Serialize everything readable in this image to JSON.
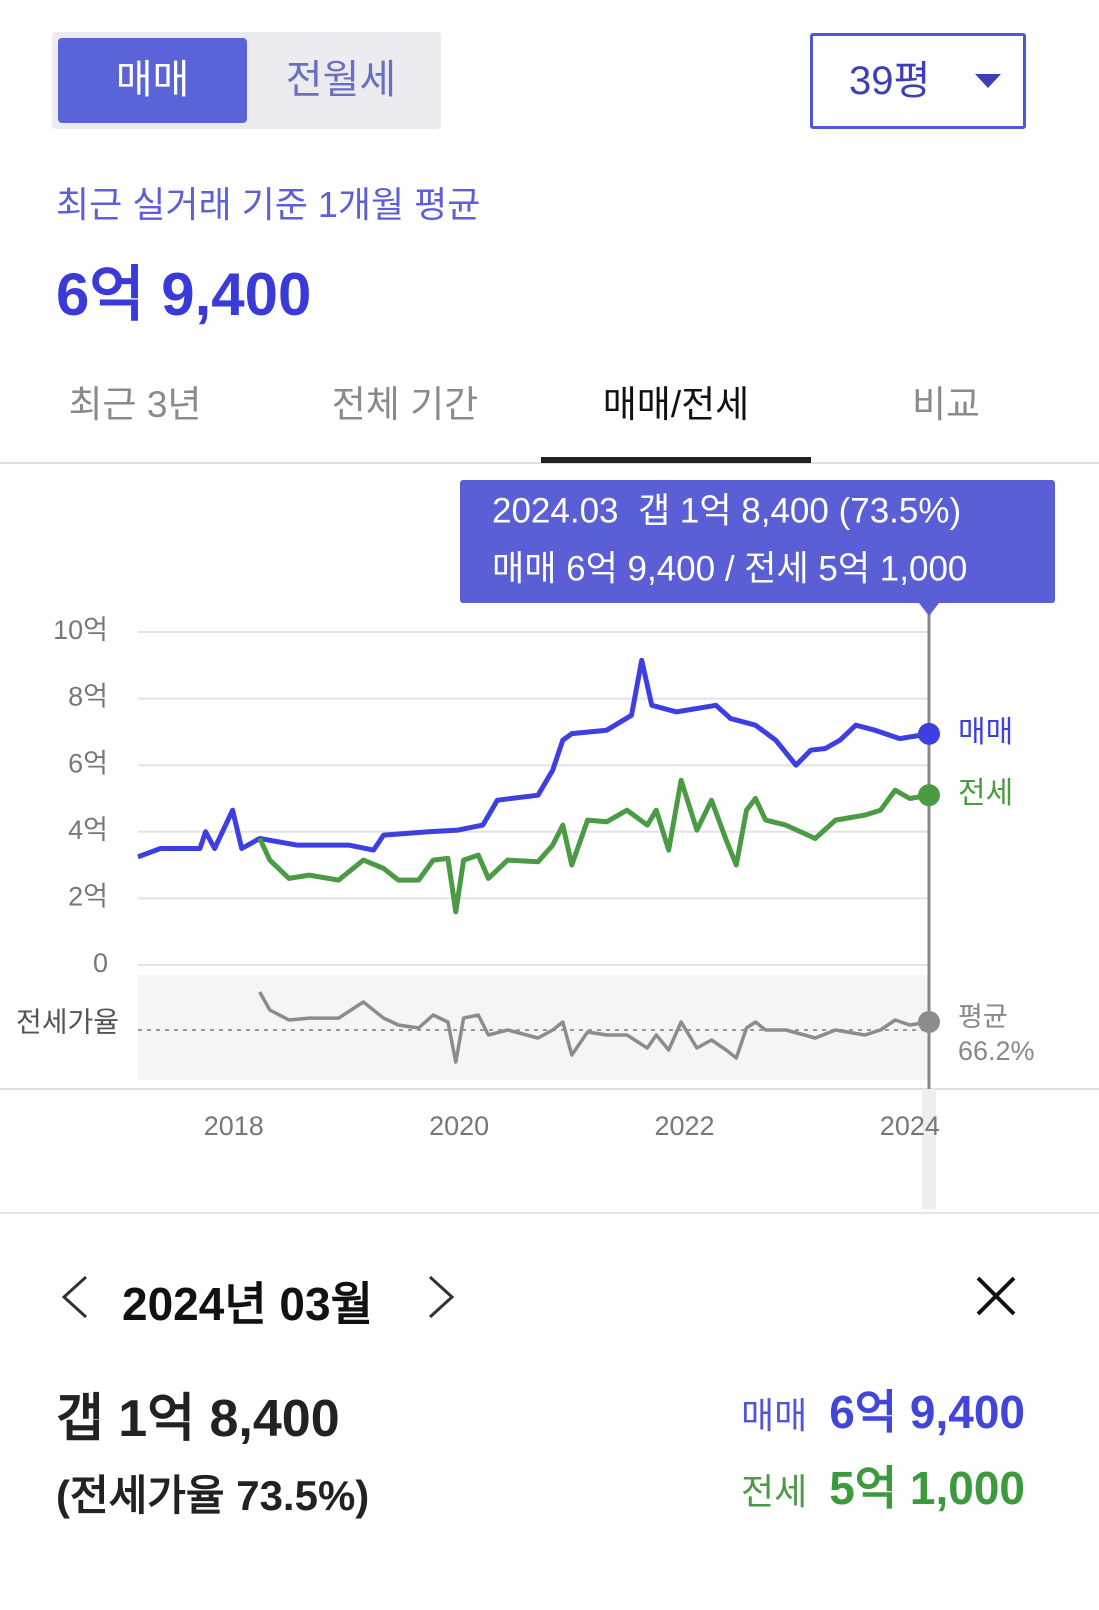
{
  "header": {
    "tabs": [
      "매매",
      "전월세"
    ],
    "size_select": "39평"
  },
  "summary": {
    "caption": "최근 실거래 기준 1개월 평균",
    "price": "6억 9,400"
  },
  "period_tabs": [
    "최근 3년",
    "전체 기간",
    "매매/전세",
    "비교"
  ],
  "tooltip": {
    "line1": "2024.03  갭 1억 8,400 (73.5%)",
    "line2": "매매 6억 9,400 / 전세 5억 1,000"
  },
  "chart_data": {
    "type": "line",
    "xlim": [
      2017.15,
      2024.17
    ],
    "xticks": [
      2018,
      2020,
      2022,
      2024
    ],
    "ylim": [
      0,
      10
    ],
    "yticks": [
      0,
      {
        "value": 2,
        "label": "2억"
      },
      {
        "value": 4,
        "label": "4억"
      },
      {
        "value": 6,
        "label": "6억"
      },
      {
        "value": 8,
        "label": "8억"
      },
      {
        "value": 10,
        "label": "10억"
      }
    ],
    "grid": true,
    "series": [
      {
        "name": "매매",
        "color": "#3d3fe0",
        "x": [
          2017.15,
          2017.35,
          2017.7,
          2017.75,
          2017.83,
          2017.99,
          2018.07,
          2018.23,
          2018.56,
          2019.02,
          2019.24,
          2019.33,
          2019.73,
          2019.99,
          2020.21,
          2020.34,
          2020.7,
          2020.83,
          2020.92,
          2021.0,
          2021.31,
          2021.53,
          2021.62,
          2021.71,
          2021.93,
          2022.28,
          2022.41,
          2022.63,
          2022.81,
          2022.99,
          2023.12,
          2023.25,
          2023.38,
          2023.52,
          2023.69,
          2023.91,
          2024.17
        ],
        "values": [
          3.25,
          3.5,
          3.5,
          4.0,
          3.5,
          4.65,
          3.5,
          3.8,
          3.6,
          3.6,
          3.45,
          3.9,
          4.0,
          4.05,
          4.2,
          4.95,
          5.1,
          5.85,
          6.75,
          6.95,
          7.05,
          7.5,
          9.15,
          7.8,
          7.6,
          7.8,
          7.4,
          7.2,
          6.75,
          6.0,
          6.45,
          6.5,
          6.75,
          7.2,
          7.05,
          6.8,
          6.94
        ]
      },
      {
        "name": "전세",
        "color": "#4b9a44",
        "x": [
          2018.23,
          2018.32,
          2018.49,
          2018.67,
          2018.93,
          2019.15,
          2019.33,
          2019.46,
          2019.64,
          2019.77,
          2019.9,
          2019.97,
          2020.04,
          2020.17,
          2020.26,
          2020.43,
          2020.7,
          2020.83,
          2020.92,
          2021.0,
          2021.14,
          2021.31,
          2021.49,
          2021.67,
          2021.75,
          2021.86,
          2021.97,
          2022.11,
          2022.24,
          2022.37,
          2022.46,
          2022.55,
          2022.63,
          2022.72,
          2022.9,
          2023.16,
          2023.34,
          2023.6,
          2023.74,
          2023.87,
          2024.0,
          2024.17
        ],
        "values": [
          3.8,
          3.15,
          2.6,
          2.7,
          2.55,
          3.15,
          2.9,
          2.55,
          2.55,
          3.15,
          3.2,
          1.6,
          3.15,
          3.3,
          2.6,
          3.15,
          3.1,
          3.6,
          4.2,
          3.0,
          4.35,
          4.3,
          4.65,
          4.2,
          4.65,
          3.45,
          5.55,
          4.05,
          4.95,
          3.75,
          3.0,
          4.65,
          5.0,
          4.35,
          4.2,
          3.8,
          4.35,
          4.5,
          4.65,
          5.25,
          5.0,
          5.1
        ]
      }
    ],
    "ratio": {
      "name": "전세가율",
      "color": "#8c8c8c",
      "x": [
        2018.23,
        2018.32,
        2018.49,
        2018.67,
        2018.93,
        2019.15,
        2019.33,
        2019.46,
        2019.64,
        2019.77,
        2019.9,
        2019.97,
        2020.04,
        2020.17,
        2020.26,
        2020.43,
        2020.7,
        2020.83,
        2020.92,
        2021.0,
        2021.14,
        2021.31,
        2021.49,
        2021.67,
        2021.75,
        2021.86,
        2021.97,
        2022.11,
        2022.24,
        2022.37,
        2022.46,
        2022.55,
        2022.63,
        2022.72,
        2022.9,
        2023.16,
        2023.34,
        2023.6,
        2023.74,
        2023.87,
        2024.0,
        2024.17
      ],
      "values": [
        100.7,
        84.4,
        75.3,
        77,
        77,
        91.7,
        77,
        70.7,
        68,
        79.8,
        73.5,
        37.1,
        77,
        79.8,
        61.7,
        66.2,
        58.9,
        66.2,
        73.5,
        43.5,
        64.4,
        61.7,
        61.7,
        49.8,
        61.7,
        48,
        73.5,
        49.8,
        57.1,
        48,
        40.7,
        68,
        73.5,
        66.2,
        66.2,
        58.9,
        66.2,
        61.7,
        66.2,
        75.3,
        70.7,
        73.5
      ],
      "average_caption": "평균",
      "average": {
        "value": 66.2,
        "label": "66.2%"
      }
    }
  },
  "detail": {
    "month": "2024년 03월",
    "gap": "갭 1억 8,400",
    "ratio": "(전세가율 73.5%)",
    "sale_label": "매매",
    "sale_price": "6억 9,400",
    "jeonse_label": "전세",
    "jeonse_price": "5억 1,000"
  }
}
